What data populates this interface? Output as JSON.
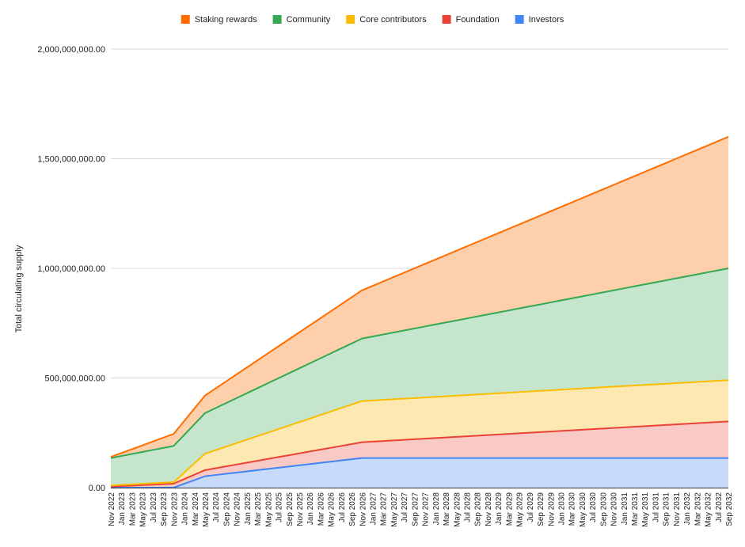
{
  "chart_data": {
    "type": "area",
    "stacked": true,
    "title": "",
    "xlabel": "",
    "ylabel": "Total circulating supply",
    "ylim": [
      0,
      2000000000
    ],
    "yticks": [
      0,
      500000000,
      1000000000,
      1500000000,
      2000000000
    ],
    "ytick_labels": [
      "0.00",
      "500,000,000.00",
      "1,000,000,000.00",
      "1,500,000,000.00",
      "2,000,000,000.00"
    ],
    "grid": true,
    "legend_position": "top-center",
    "categories": [
      "Nov 2022",
      "Jan 2023",
      "Mar 2023",
      "May 2023",
      "Jul 2023",
      "Sep 2023",
      "Nov 2023",
      "Jan 2024",
      "Mar 2024",
      "May 2024",
      "Jul 2024",
      "Sep 2024",
      "Nov 2024",
      "Jan 2025",
      "Mar 2025",
      "May 2025",
      "Jul 2025",
      "Sep 2025",
      "Nov 2025",
      "Jan 2026",
      "Mar 2026",
      "May 2026",
      "Jul 2026",
      "Sep 2026",
      "Nov 2026",
      "Jan 2027",
      "Mar 2027",
      "May 2027",
      "Jul 2027",
      "Sep 2027",
      "Nov 2027",
      "Jan 2028",
      "Mar 2028",
      "May 2028",
      "Jul 2028",
      "Sep 2028",
      "Nov 2028",
      "Jan 2029",
      "Mar 2029",
      "May 2029",
      "Jul 2029",
      "Sep 2029",
      "Nov 2029",
      "Jan 2030",
      "Mar 2030",
      "May 2030",
      "Jul 2030",
      "Sep 2030",
      "Nov 2030",
      "Jan 2031",
      "Mar 2031",
      "May 2031",
      "Jul 2031",
      "Sep 2031",
      "Nov 2031",
      "Jan 2032",
      "Mar 2032",
      "May 2032",
      "Jul 2032",
      "Sep 2032"
    ],
    "series": [
      {
        "name": "Staking rewards",
        "color": "#ff6d01",
        "fill": "#fdcfab",
        "points": [
          [
            0,
            140000000
          ],
          [
            6,
            245000000
          ],
          [
            9,
            420000000
          ],
          [
            24,
            900000000
          ],
          [
            59,
            1600000000
          ]
        ]
      },
      {
        "name": "Community",
        "color": "#34a853",
        "fill": "#c5e6cd",
        "points": [
          [
            0,
            135000000
          ],
          [
            6,
            190000000
          ],
          [
            9,
            340000000
          ],
          [
            24,
            680000000
          ],
          [
            59,
            1000000000
          ]
        ]
      },
      {
        "name": "Core contributors",
        "color": "#fbbc04",
        "fill": "#fde8b2",
        "points": [
          [
            0,
            10000000
          ],
          [
            6,
            25000000
          ],
          [
            9,
            155000000
          ],
          [
            24,
            395000000
          ],
          [
            59,
            490000000
          ]
        ]
      },
      {
        "name": "Foundation",
        "color": "#ea4335",
        "fill": "#f8c9c5",
        "points": [
          [
            0,
            5000000
          ],
          [
            6,
            18000000
          ],
          [
            9,
            80000000
          ],
          [
            24,
            207000000
          ],
          [
            59,
            302000000
          ]
        ]
      },
      {
        "name": "Investors",
        "color": "#4285f4",
        "fill": "#c7daf9",
        "points": [
          [
            0,
            0
          ],
          [
            6,
            0
          ],
          [
            9,
            52000000
          ],
          [
            24,
            135000000
          ],
          [
            59,
            135000000
          ]
        ]
      }
    ]
  }
}
